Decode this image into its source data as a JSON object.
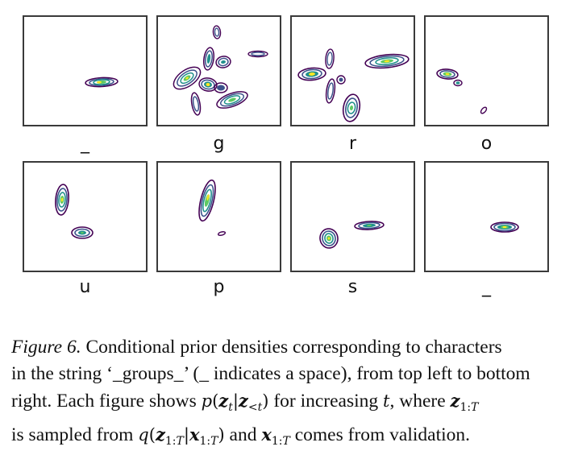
{
  "panels": [
    {
      "label": "_"
    },
    {
      "label": "g"
    },
    {
      "label": "r"
    },
    {
      "label": "o"
    },
    {
      "label": "u"
    },
    {
      "label": "p"
    },
    {
      "label": "s"
    },
    {
      "label": "_"
    }
  ],
  "caption": {
    "figure_label": "Figure 6.",
    "line1": " Conditional prior densities corresponding to characters",
    "line2": "in the string ‘_groups_’ (_ indicates a space), from top left to bottom",
    "line3a": "right. Each figure shows ",
    "line3b": " for increasing ",
    "line3c": ", where ",
    "line4a": "is sampled from ",
    "line4b": " and ",
    "line4c": " comes from validation."
  },
  "colors": {
    "contour_outer": "#440154",
    "contour_mid": "#3b528b",
    "contour_inner": "#21918c",
    "contour_core": "#5ec962",
    "contour_peak": "#fde725"
  }
}
